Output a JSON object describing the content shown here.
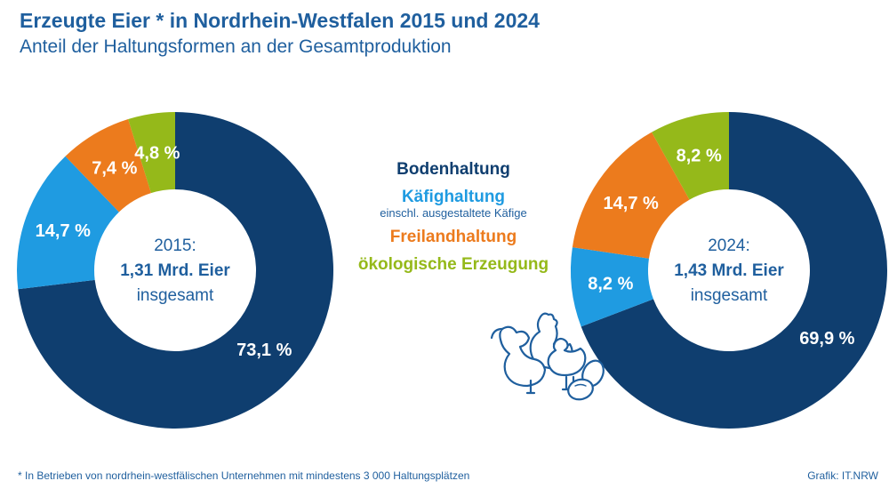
{
  "title": "Erzeugte Eier * in Nordrhein-Westfalen 2015 und 2024",
  "subtitle": "Anteil der Haltungsformen an der Gesamtproduktion",
  "colors": {
    "bodenhaltung": "#0f3e6f",
    "kaefighaltung": "#1f9be1",
    "freilandhaltung": "#ec7b1d",
    "oekologisch": "#95b91a",
    "text": "#1f5f9e"
  },
  "legend": {
    "items": [
      {
        "label": "Bodenhaltung",
        "color": "#0f3e6f",
        "note": ""
      },
      {
        "label": "Käfighaltung",
        "color": "#1f9be1",
        "note": "einschl. ausgestaltete Käfige"
      },
      {
        "label": "Freilandhaltung",
        "color": "#ec7b1d",
        "note": ""
      },
      {
        "label": "ökologische Erzeugung",
        "color": "#95b91a",
        "note": ""
      }
    ]
  },
  "chart_data": [
    {
      "type": "pie",
      "year": "2015:",
      "total": "1,31 Mrd. Eier",
      "total_note": "insgesamt",
      "slices": [
        {
          "name": "Bodenhaltung",
          "value": 73.1,
          "label": "73,1 %"
        },
        {
          "name": "Käfighaltung",
          "value": 14.7,
          "label": "14,7 %"
        },
        {
          "name": "Freilandhaltung",
          "value": 7.4,
          "label": "7,4 %"
        },
        {
          "name": "ökologische Erzeugung",
          "value": 4.8,
          "label": "4,8 %"
        }
      ]
    },
    {
      "type": "pie",
      "year": "2024:",
      "total": "1,43 Mrd. Eier",
      "total_note": "insgesamt",
      "slices": [
        {
          "name": "Bodenhaltung",
          "value": 69.9,
          "label": "69,9 %"
        },
        {
          "name": "Käfighaltung",
          "value": 8.2,
          "label": "8,2 %"
        },
        {
          "name": "Freilandhaltung",
          "value": 14.7,
          "label": "14,7 %"
        },
        {
          "name": "ökologische Erzeugung",
          "value": 8.2,
          "label": "8,2 %"
        }
      ]
    }
  ],
  "footnote": "*  In Betrieben von nordrhein-westfälischen Unternehmen mit mindestens 3 000 Haltungsplätzen",
  "credit": "Grafik: IT.NRW"
}
